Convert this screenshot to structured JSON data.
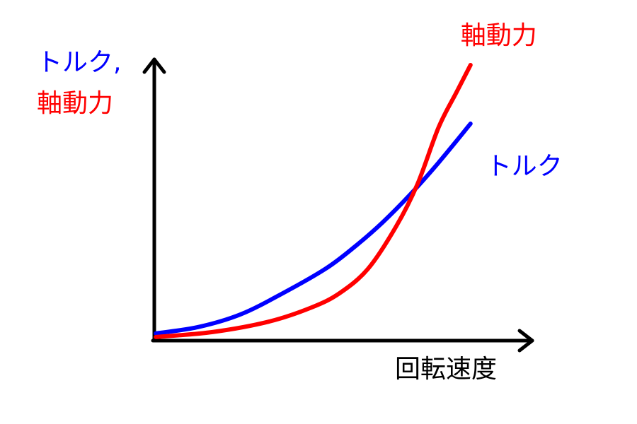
{
  "chart_data": {
    "type": "line",
    "xlabel": "回転速度",
    "ylabel": [
      "トルク,",
      "軸動力"
    ],
    "xlim": [
      0,
      100
    ],
    "ylim": [
      0,
      100
    ],
    "series": [
      {
        "name": "トルク",
        "color": "#0000ff",
        "x": [
          0.4,
          11.7,
          23.0,
          34.3,
          45.7,
          53.2,
          60.8,
          68.3,
          75.8,
          84.3
        ],
        "values": [
          2.1,
          4.4,
          9.0,
          16.7,
          25.6,
          33.3,
          42.3,
          52.6,
          64.1,
          78.2
        ]
      },
      {
        "name": "軸動力",
        "color": "#ff0000",
        "x": [
          0.4,
          15.5,
          30.6,
          41.9,
          49.4,
          57.0,
          64.5,
          70.2,
          75.8,
          80.6,
          84.3
        ],
        "values": [
          0.8,
          2.6,
          6.4,
          11.5,
          16.7,
          25.6,
          41.0,
          56.4,
          76.9,
          89.7,
          99.5
        ]
      }
    ]
  }
}
